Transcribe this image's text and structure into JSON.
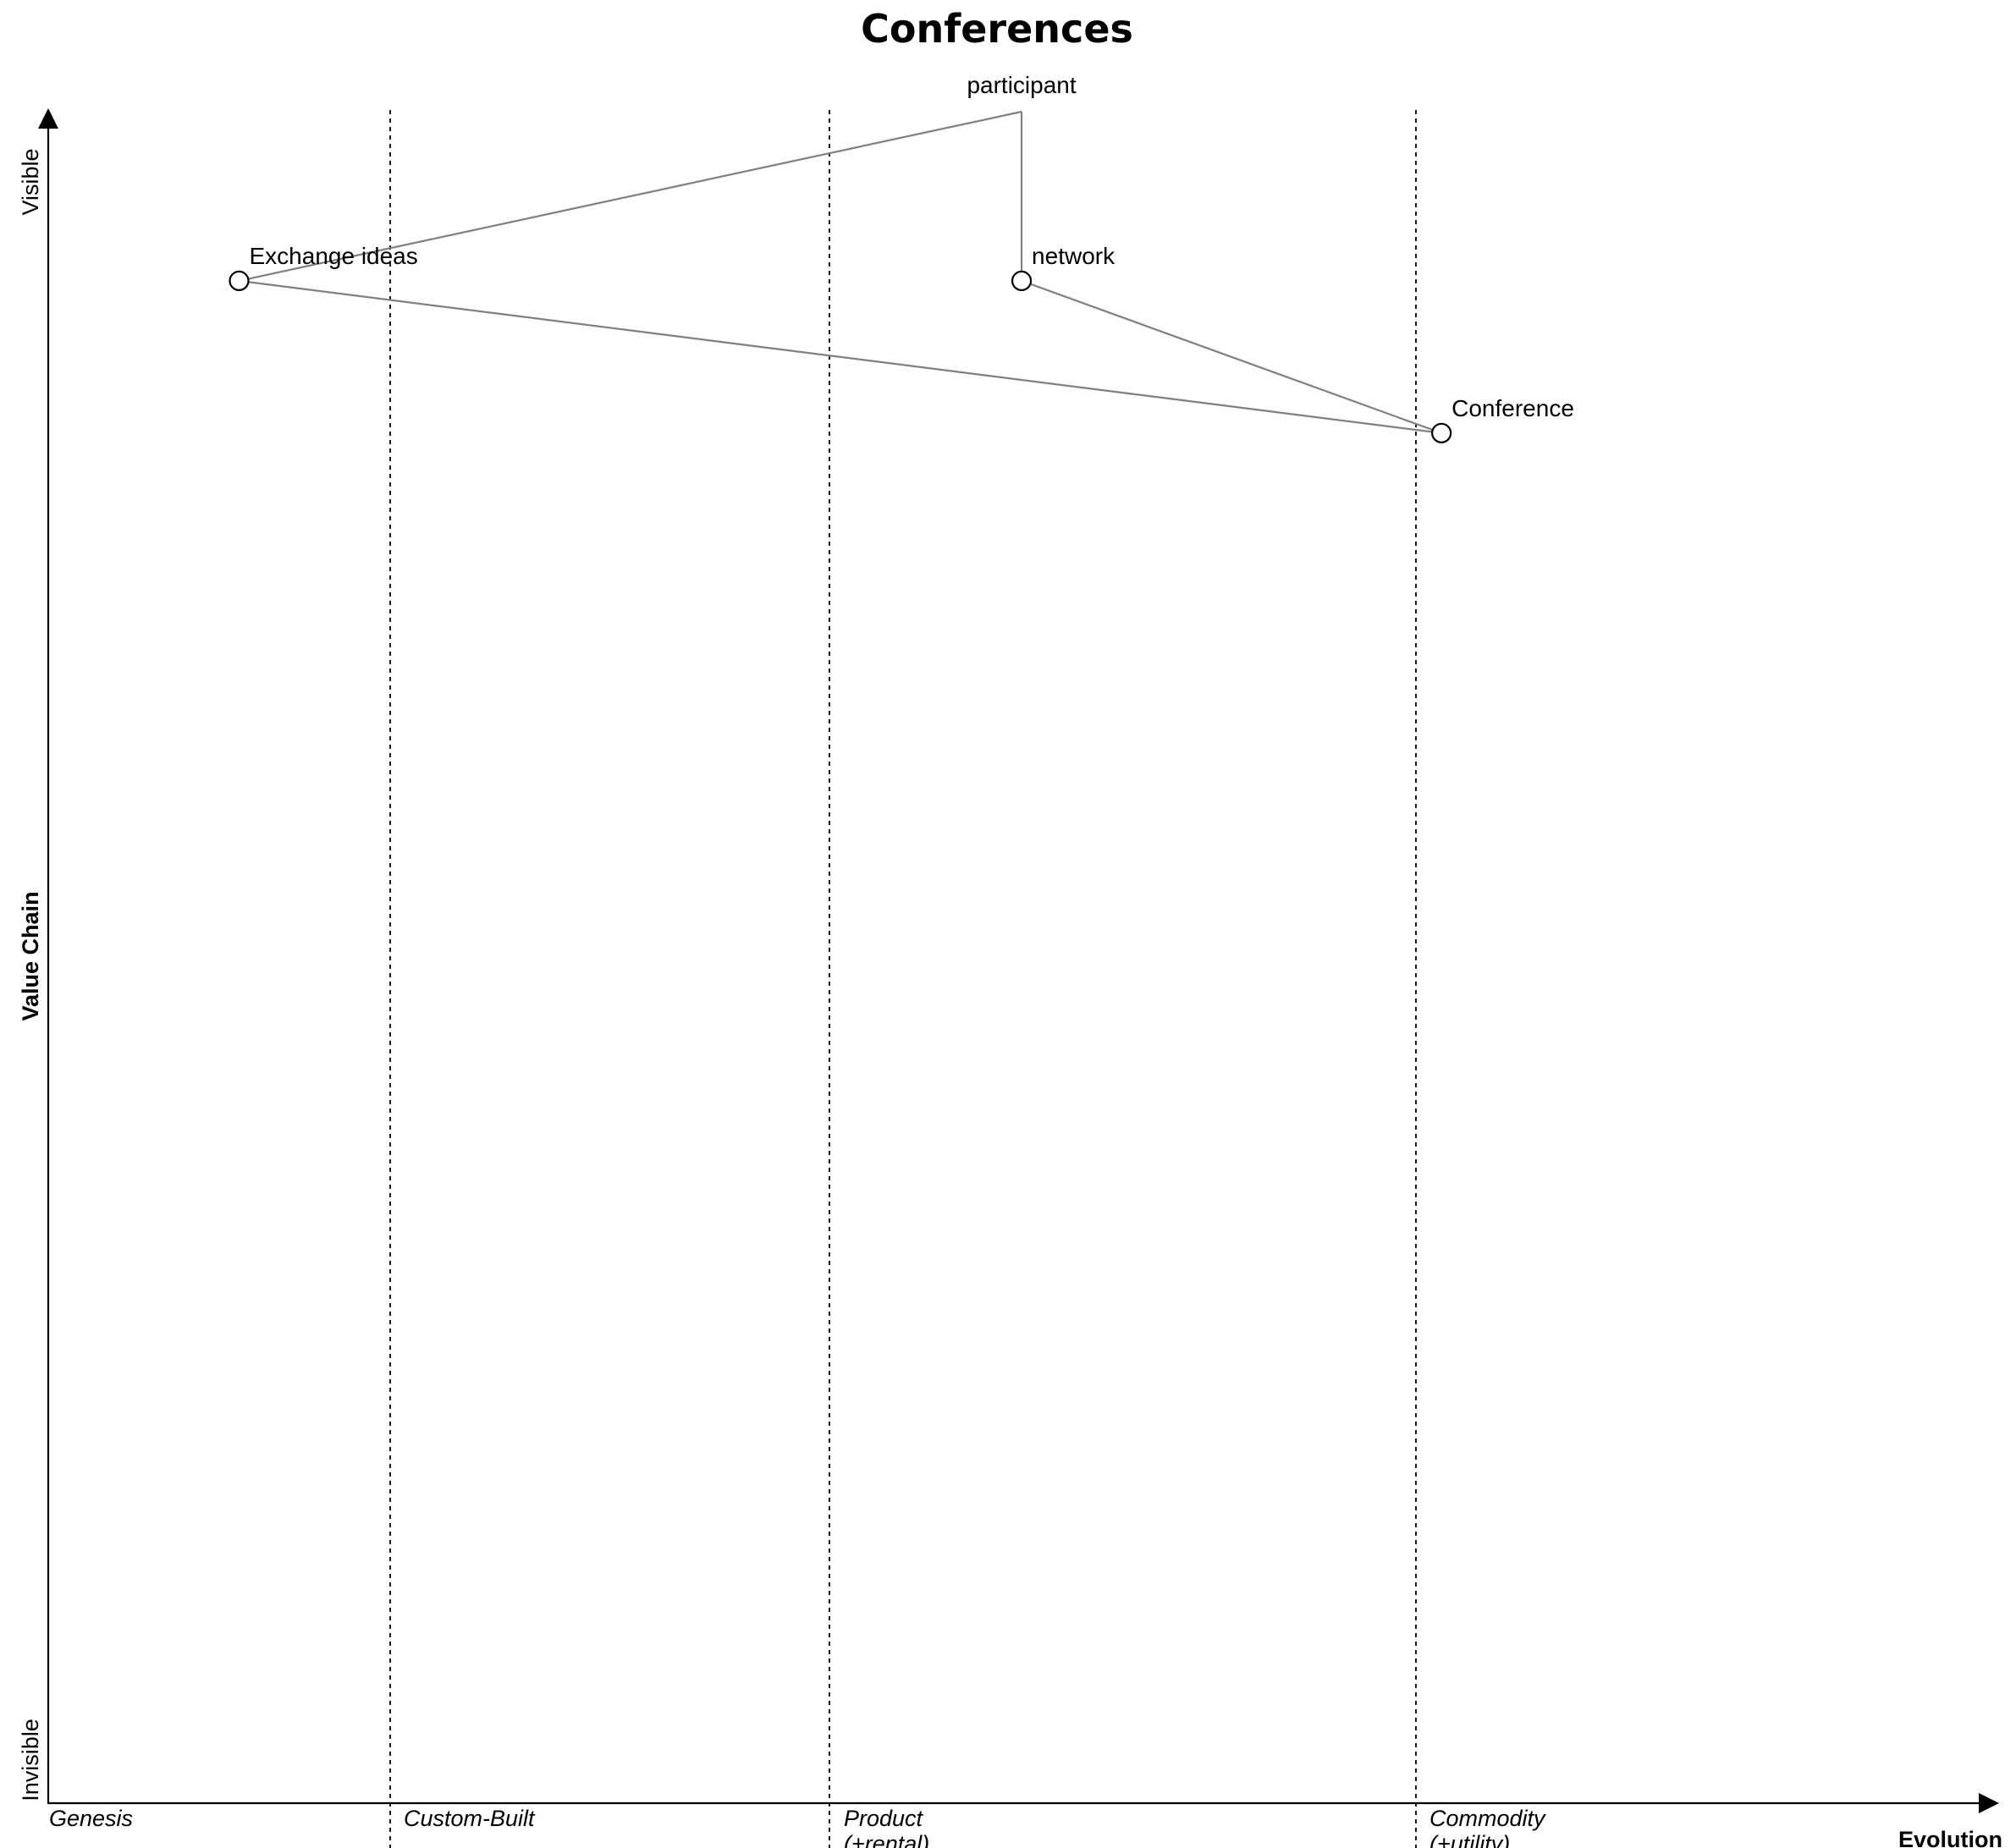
{
  "title": "Conferences",
  "axes": {
    "y_title": "Value Chain",
    "y_top": "Visible",
    "y_bottom": "Invisible",
    "x_title": "Evolution"
  },
  "stages": [
    {
      "line1": "Genesis",
      "line2": ""
    },
    {
      "line1": "Custom-Built",
      "line2": ""
    },
    {
      "line1": "Product",
      "line2": "(+rental)"
    },
    {
      "line1": "Commodity",
      "line2": "(+utility)"
    }
  ],
  "anchors": [
    {
      "id": "participant",
      "label": "participant",
      "visibility": 1.0,
      "evolution": 0.51
    }
  ],
  "components": [
    {
      "id": "exchange",
      "label": "Exchange ideas",
      "visibility": 0.9,
      "evolution": 0.1
    },
    {
      "id": "network",
      "label": "network",
      "visibility": 0.9,
      "evolution": 0.51
    },
    {
      "id": "conference",
      "label": "Conference",
      "visibility": 0.81,
      "evolution": 0.73
    }
  ],
  "links": [
    {
      "from": "participant",
      "to": "exchange"
    },
    {
      "from": "participant",
      "to": "network"
    },
    {
      "from": "exchange",
      "to": "conference"
    },
    {
      "from": "network",
      "to": "conference"
    }
  ],
  "colors": {
    "link": "#808080",
    "node_fill": "#ffffff",
    "node_stroke": "#000000",
    "text": "#000000"
  }
}
